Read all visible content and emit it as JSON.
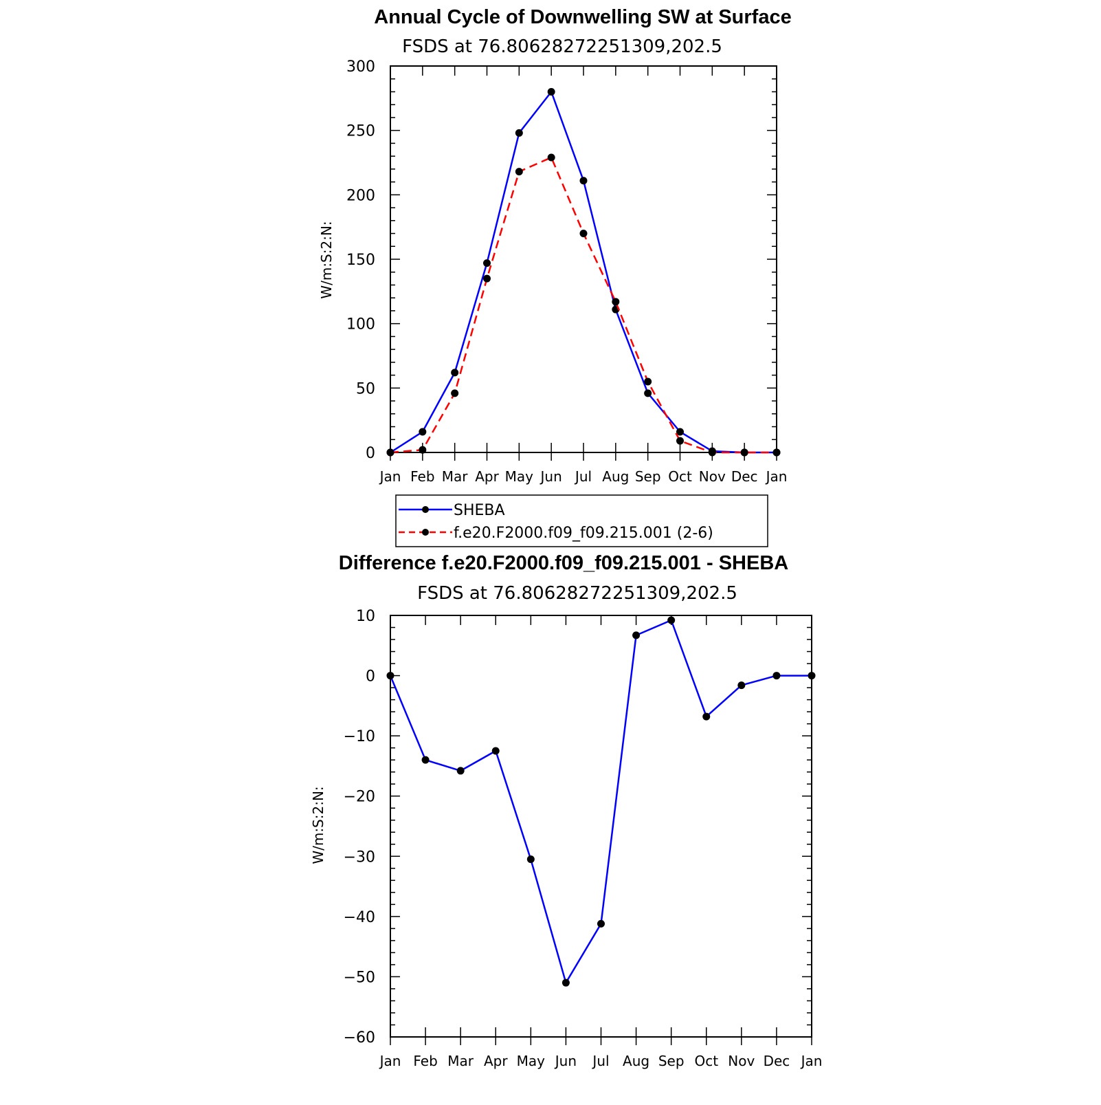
{
  "chart_data": [
    {
      "type": "line",
      "title": "Annual Cycle of Downwelling SW at Surface",
      "subtitle": "FSDS at 76.80628272251309,202.5",
      "ylabel": "W/m:S:2:N:",
      "xlabel": "",
      "ylim": [
        0,
        300
      ],
      "yticks": [
        0,
        50,
        100,
        150,
        200,
        250,
        300
      ],
      "categories": [
        "Jan",
        "Feb",
        "Mar",
        "Apr",
        "May",
        "Jun",
        "Jul",
        "Aug",
        "Sep",
        "Oct",
        "Nov",
        "Dec",
        "Jan"
      ],
      "series": [
        {
          "name": "SHEBA",
          "color": "#0000ff",
          "dash": "solid",
          "values": [
            0,
            16,
            62,
            147,
            248,
            280,
            211,
            111,
            46,
            16,
            1,
            0,
            0
          ]
        },
        {
          "name": "f.e20.F2000.f09_f09.215.001 (2-6)",
          "color": "#ff0000",
          "dash": "dashed",
          "values": [
            0,
            2,
            46,
            135,
            218,
            229,
            170,
            117,
            55,
            9,
            0,
            0,
            0
          ]
        }
      ],
      "legend": "below"
    },
    {
      "type": "line",
      "title": "Difference f.e20.F2000.f09_f09.215.001 - SHEBA",
      "subtitle": "FSDS at 76.80628272251309,202.5",
      "ylabel": "W/m:S:2:N:",
      "xlabel": "",
      "ylim": [
        -60,
        10
      ],
      "yticks": [
        -60,
        -50,
        -40,
        -30,
        -20,
        -10,
        0,
        10
      ],
      "ytick_labels": [
        "−60",
        "−50",
        "−40",
        "−30",
        "−20",
        "−10",
        "0",
        "10"
      ],
      "categories": [
        "Jan",
        "Feb",
        "Mar",
        "Apr",
        "May",
        "Jun",
        "Jul",
        "Aug",
        "Sep",
        "Oct",
        "Nov",
        "Dec",
        "Jan"
      ],
      "series": [
        {
          "color": "#0000ff",
          "dash": "solid",
          "values": [
            0,
            -14,
            -15.8,
            -12.5,
            -30.5,
            -51,
            -41.2,
            6.7,
            9.2,
            -6.8,
            -1.6,
            0,
            0
          ]
        }
      ]
    }
  ]
}
